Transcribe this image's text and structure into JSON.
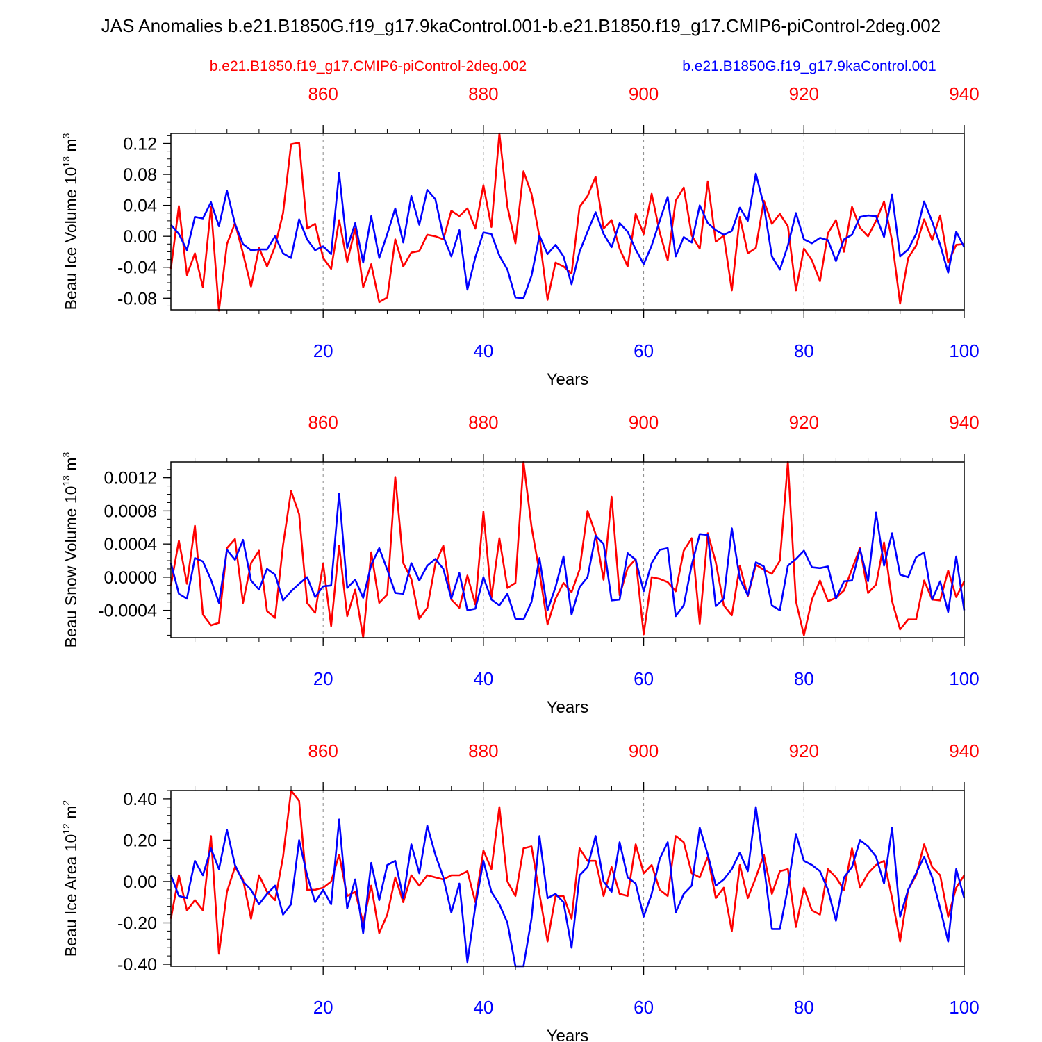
{
  "title": "JAS Anomalies b.e21.B1850G.f19_g17.9kaControl.001-b.e21.B1850.f19_g17.CMIP6-piControl-2deg.002",
  "legend": {
    "red_label": "b.e21.B1850.f19_g17.CMIP6-piControl-2deg.002",
    "blue_label": "b.e21.B1850G.f19_g17.9kaControl.001"
  },
  "colors": {
    "red": "#ff0000",
    "blue": "#0000ff",
    "axis": "#000000",
    "grid": "#888888"
  },
  "chart_data": [
    {
      "type": "line",
      "ylabel": "Beau Ice Volume 10^13 m^3",
      "ylabel_main": "Beau Ice Volume 10",
      "ylabel_exp": "13",
      "ylabel_unit": " m",
      "ylabel_unit_exp": "3",
      "xlabel": "Years",
      "xlim": [
        1,
        100
      ],
      "ylim": [
        -0.095,
        0.133
      ],
      "yticks": [
        -0.08,
        -0.04,
        0.0,
        0.04,
        0.08,
        0.12
      ],
      "ytick_labels": [
        "-0.08",
        "-0.04",
        "0.00",
        "0.04",
        "0.08",
        "0.12"
      ],
      "ymin_step": 0.01,
      "xticks": [
        20,
        40,
        60,
        80,
        100
      ],
      "xtick_labels": [
        "20",
        "40",
        "60",
        "80",
        "100"
      ],
      "top_ticks": [
        860,
        880,
        900,
        920,
        940
      ],
      "top_tick_labels": [
        "860",
        "880",
        "900",
        "920",
        "940"
      ],
      "top_offset": 840,
      "series": [
        {
          "name": "b.e21.B1850.f19_g17.CMIP6-piControl-2deg.002",
          "color": "red",
          "values": [
            -0.042,
            0.039,
            -0.05,
            -0.022,
            -0.066,
            0.038,
            -0.096,
            -0.01,
            0.017,
            -0.022,
            -0.065,
            -0.015,
            -0.039,
            -0.013,
            0.03,
            0.119,
            0.121,
            0.01,
            0.016,
            -0.028,
            -0.042,
            0.021,
            -0.033,
            0.01,
            -0.066,
            -0.036,
            -0.085,
            -0.079,
            -0.004,
            -0.039,
            -0.021,
            -0.019,
            0.002,
            0.0,
            -0.004,
            0.033,
            0.026,
            0.036,
            0.01,
            0.066,
            0.012,
            0.133,
            0.038,
            -0.009,
            0.084,
            0.055,
            -0.001,
            -0.082,
            -0.034,
            -0.039,
            -0.048,
            0.038,
            0.052,
            0.077,
            0.01,
            0.021,
            -0.016,
            -0.039,
            0.029,
            0.003,
            0.055,
            0.005,
            -0.031,
            0.046,
            0.063,
            0.001,
            -0.016,
            0.071,
            -0.007,
            0.001,
            -0.07,
            0.025,
            -0.022,
            -0.015,
            0.046,
            0.016,
            0.029,
            0.013,
            -0.07,
            -0.016,
            -0.031,
            -0.058,
            0.004,
            0.021,
            -0.02,
            0.038,
            0.011,
            0.0,
            0.02,
            0.045,
            -0.006,
            -0.087,
            -0.028,
            -0.012,
            0.022,
            -0.005,
            0.027,
            -0.034,
            -0.011,
            -0.01
          ]
        },
        {
          "name": "b.e21.B1850G.f19_g17.9kaControl.001",
          "color": "blue",
          "values": [
            0.015,
            0.003,
            -0.018,
            0.025,
            0.023,
            0.044,
            0.013,
            0.059,
            0.016,
            -0.01,
            -0.018,
            -0.017,
            -0.017,
            0.0,
            -0.022,
            -0.028,
            0.022,
            -0.004,
            -0.018,
            -0.013,
            -0.023,
            0.082,
            -0.015,
            0.017,
            -0.034,
            0.026,
            -0.028,
            0.003,
            0.036,
            -0.008,
            0.052,
            0.015,
            0.06,
            0.048,
            0.0,
            -0.026,
            0.008,
            -0.069,
            -0.027,
            0.005,
            0.003,
            -0.025,
            -0.043,
            -0.079,
            -0.08,
            -0.051,
            0.001,
            -0.023,
            -0.011,
            -0.026,
            -0.062,
            -0.02,
            0.006,
            0.031,
            0.003,
            -0.014,
            0.017,
            0.006,
            -0.017,
            -0.036,
            -0.012,
            0.02,
            0.051,
            -0.026,
            -0.001,
            -0.008,
            0.04,
            0.017,
            0.008,
            0.002,
            0.007,
            0.037,
            0.02,
            0.081,
            0.04,
            -0.026,
            -0.043,
            -0.012,
            0.03,
            -0.004,
            -0.009,
            -0.002,
            -0.005,
            -0.032,
            -0.004,
            0.002,
            0.025,
            0.027,
            0.026,
            -0.001,
            0.054,
            -0.026,
            -0.017,
            0.003,
            0.045,
            0.019,
            -0.011,
            -0.047,
            0.006,
            -0.014
          ]
        }
      ]
    },
    {
      "type": "line",
      "ylabel": "Beau Snow Volume 10^13 m^3",
      "ylabel_main": "Beau Snow Volume 10",
      "ylabel_exp": "13",
      "ylabel_unit": " m",
      "ylabel_unit_exp": "3",
      "xlabel": "Years",
      "xlim": [
        1,
        100
      ],
      "ylim": [
        -0.00073,
        0.00139
      ],
      "yticks": [
        -0.0004,
        0.0,
        0.0004,
        0.0008,
        0.0012
      ],
      "ytick_labels": [
        "-0.0004",
        "0.0000",
        "0.0004",
        "0.0008",
        "0.0012"
      ],
      "ymin_step": 0.0001,
      "xticks": [
        20,
        40,
        60,
        80,
        100
      ],
      "xtick_labels": [
        "20",
        "40",
        "60",
        "80",
        "100"
      ],
      "top_ticks": [
        860,
        880,
        900,
        920,
        940
      ],
      "top_tick_labels": [
        "860",
        "880",
        "900",
        "920",
        "940"
      ],
      "top_offset": 840,
      "series": [
        {
          "name": "b.e21.B1850.f19_g17.CMIP6-piControl-2deg.002",
          "color": "red",
          "values": [
            -0.0001,
            0.00044,
            -8e-05,
            0.00062,
            -0.00045,
            -0.00058,
            -0.00055,
            0.00035,
            0.00046,
            -0.00031,
            0.00017,
            0.00032,
            -0.00041,
            -0.00049,
            0.00039,
            0.00104,
            0.00076,
            -0.00031,
            -0.00043,
            0.00016,
            -0.00059,
            0.00038,
            -0.00047,
            -0.00015,
            -0.00073,
            0.0003,
            -0.00031,
            -0.00021,
            0.00121,
            0.00017,
            -2e-05,
            -0.0005,
            -0.00037,
            0.00016,
            0.00038,
            -0.00027,
            -0.00037,
            2e-05,
            -0.00033,
            0.00079,
            -0.00025,
            0.00047,
            -0.00013,
            -7e-05,
            0.00139,
            0.00061,
            6e-05,
            -0.00057,
            -0.00026,
            -7e-05,
            -0.00018,
            9e-05,
            0.0008,
            0.00052,
            -3e-05,
            0.00097,
            -0.00022,
            0.00011,
            0.00022,
            -0.00069,
            0.0,
            -2e-05,
            -6e-05,
            -0.00017,
            0.00032,
            0.00047,
            -0.00056,
            0.00053,
            0.00018,
            -0.00034,
            -0.00046,
            0.00014,
            -0.00023,
            0.00015,
            9e-05,
            4e-05,
            0.0002,
            0.00139,
            -0.00029,
            -0.0007,
            -0.00027,
            -4e-05,
            -0.00029,
            -0.00025,
            -0.00016,
            0.0001,
            0.00035,
            -0.00019,
            -9e-05,
            0.00042,
            -0.00029,
            -0.00063,
            -0.00051,
            -0.00051,
            -4e-05,
            -0.00027,
            -0.00028,
            8e-05,
            -0.00024,
            -5e-05
          ]
        },
        {
          "name": "b.e21.B1850G.f19_g17.9kaControl.001",
          "color": "blue",
          "values": [
            0.00017,
            -0.0002,
            -0.00026,
            0.00023,
            0.00019,
            -3e-05,
            -0.00031,
            0.00033,
            0.00021,
            0.00045,
            -4e-05,
            -0.00015,
            0.0001,
            3e-05,
            -0.00028,
            -0.00017,
            -8e-05,
            0.0,
            -0.00024,
            -0.00011,
            -0.0001,
            0.00101,
            -0.00013,
            -3e-05,
            -0.00025,
            0.00015,
            0.00035,
            9e-05,
            -0.00019,
            -0.0002,
            0.00017,
            -4e-05,
            0.00014,
            0.00022,
            0.0001,
            -0.00026,
            5e-05,
            -0.0004,
            -0.00038,
            0.0,
            -0.00027,
            -0.00034,
            -0.0002,
            -0.0005,
            -0.00051,
            -0.0003,
            0.00023,
            -0.0004,
            -0.00012,
            0.00025,
            -0.00045,
            -0.00012,
            0.0,
            0.0005,
            0.0004,
            -0.00028,
            -0.00027,
            0.00029,
            0.00021,
            -0.00017,
            0.00017,
            0.00033,
            0.00035,
            -0.00047,
            -0.00034,
            0.00015,
            0.00052,
            0.00051,
            -0.00035,
            -0.00026,
            0.00059,
            -2e-05,
            -0.00022,
            0.00018,
            0.00013,
            -0.00034,
            -0.0004,
            0.00014,
            0.00022,
            0.00032,
            0.00012,
            0.00011,
            0.00013,
            -0.00026,
            -5e-05,
            -4e-05,
            0.00034,
            -5e-05,
            0.00078,
            0.00014,
            0.00053,
            3e-05,
            0.0,
            0.00024,
            0.0003,
            -0.00027,
            -5e-05,
            -0.00042,
            0.00025,
            -0.0004
          ]
        }
      ]
    },
    {
      "type": "line",
      "ylabel": "Beau Ice Area 10^12 m^2",
      "ylabel_main": "Beau Ice Area 10",
      "ylabel_exp": "12",
      "ylabel_unit": " m",
      "ylabel_unit_exp": "2",
      "xlabel": "Years",
      "xlim": [
        1,
        100
      ],
      "ylim": [
        -0.41,
        0.44
      ],
      "yticks": [
        -0.4,
        -0.2,
        0.0,
        0.2,
        0.4
      ],
      "ytick_labels": [
        "-0.40",
        "-0.20",
        "0.00",
        "0.20",
        "0.40"
      ],
      "ymin_step": 0.04,
      "xticks": [
        20,
        40,
        60,
        80,
        100
      ],
      "xtick_labels": [
        "20",
        "40",
        "60",
        "80",
        "100"
      ],
      "top_ticks": [
        860,
        880,
        900,
        920,
        940
      ],
      "top_tick_labels": [
        "860",
        "880",
        "900",
        "920",
        "940"
      ],
      "top_offset": 840,
      "series": [
        {
          "name": "b.e21.B1850.f19_g17.CMIP6-piControl-2deg.002",
          "color": "red",
          "values": [
            -0.18,
            0.03,
            -0.14,
            -0.09,
            -0.14,
            0.22,
            -0.35,
            -0.05,
            0.07,
            0.01,
            -0.18,
            0.03,
            -0.05,
            -0.09,
            0.12,
            0.44,
            0.39,
            -0.04,
            -0.04,
            -0.03,
            0.0,
            0.13,
            -0.07,
            -0.05,
            -0.2,
            -0.02,
            -0.25,
            -0.16,
            0.02,
            -0.1,
            0.03,
            -0.02,
            0.03,
            0.02,
            0.01,
            0.03,
            0.03,
            0.05,
            -0.1,
            0.15,
            0.06,
            0.36,
            0.0,
            -0.07,
            0.16,
            0.17,
            -0.06,
            -0.29,
            -0.07,
            -0.07,
            -0.18,
            0.16,
            0.1,
            0.1,
            -0.07,
            0.07,
            -0.06,
            -0.07,
            0.18,
            0.04,
            0.08,
            -0.04,
            -0.07,
            0.22,
            0.19,
            0.04,
            0.02,
            0.12,
            -0.08,
            -0.03,
            -0.24,
            0.08,
            -0.08,
            0.02,
            0.13,
            -0.06,
            0.05,
            0.06,
            -0.22,
            -0.03,
            -0.14,
            -0.16,
            0.06,
            0.02,
            -0.04,
            0.16,
            -0.03,
            0.04,
            0.08,
            0.1,
            -0.08,
            -0.29,
            -0.04,
            0.03,
            0.18,
            0.07,
            0.03,
            -0.17,
            -0.03,
            0.03
          ]
        },
        {
          "name": "b.e21.B1850G.f19_g17.9kaControl.001",
          "color": "blue",
          "values": [
            0.03,
            -0.07,
            -0.08,
            0.1,
            0.03,
            0.16,
            0.06,
            0.25,
            0.08,
            0.0,
            -0.04,
            -0.11,
            -0.06,
            -0.02,
            -0.16,
            -0.11,
            0.2,
            0.03,
            -0.1,
            -0.04,
            -0.11,
            0.3,
            -0.13,
            0.01,
            -0.25,
            0.09,
            -0.09,
            0.08,
            0.1,
            -0.08,
            0.18,
            0.04,
            0.27,
            0.13,
            0.02,
            -0.15,
            -0.01,
            -0.39,
            -0.12,
            0.1,
            -0.05,
            -0.11,
            -0.2,
            -0.41,
            -0.41,
            -0.18,
            0.22,
            -0.08,
            -0.06,
            -0.1,
            -0.32,
            0.03,
            0.07,
            0.22,
            0.0,
            -0.05,
            0.19,
            0.02,
            -0.01,
            -0.17,
            -0.06,
            0.11,
            0.19,
            -0.15,
            -0.06,
            -0.02,
            0.26,
            0.13,
            -0.02,
            0.01,
            0.06,
            0.14,
            0.05,
            0.36,
            0.08,
            -0.23,
            -0.23,
            -0.03,
            0.23,
            0.1,
            0.08,
            0.05,
            -0.04,
            -0.19,
            0.02,
            0.07,
            0.2,
            0.17,
            0.12,
            -0.01,
            0.26,
            -0.17,
            -0.04,
            0.04,
            0.12,
            0.02,
            -0.13,
            -0.29,
            0.06,
            -0.08
          ]
        }
      ]
    }
  ]
}
